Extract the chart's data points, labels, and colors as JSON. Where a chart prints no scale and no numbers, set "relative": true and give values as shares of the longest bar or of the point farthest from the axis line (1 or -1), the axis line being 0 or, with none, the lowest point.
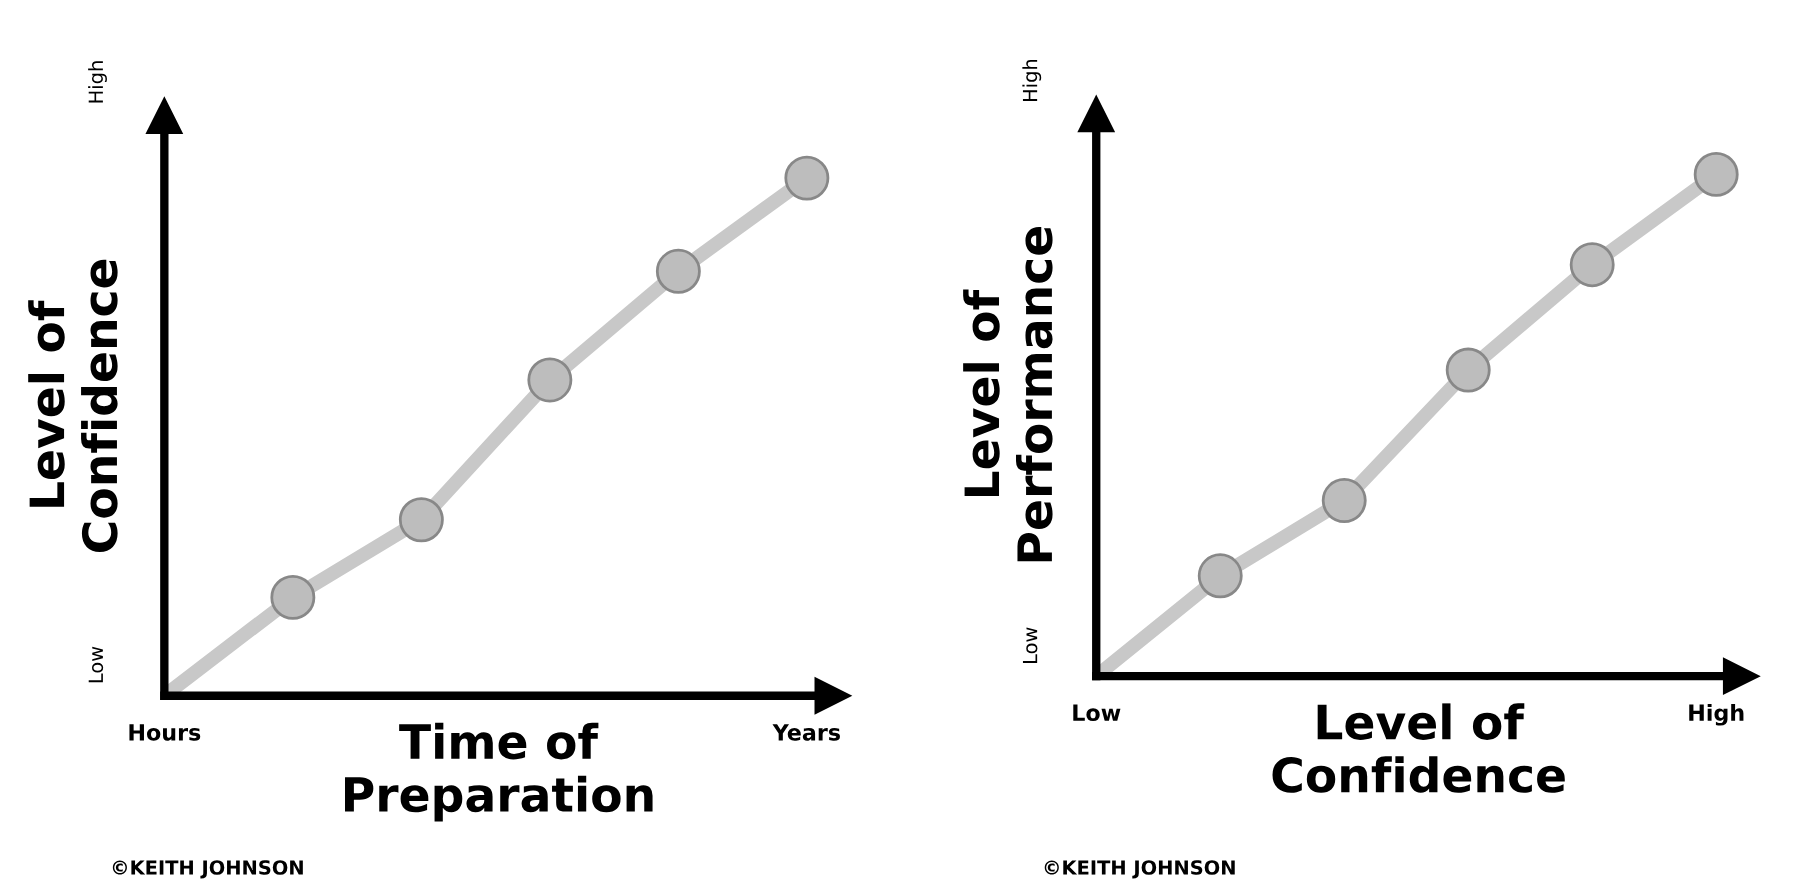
{
  "chart_data": [
    {
      "type": "line",
      "relative": true,
      "xlabel": "Time of\nPreparation",
      "ylabel": "Level of\nConfidence",
      "categories": [
        "Hours",
        null,
        null,
        null,
        null,
        "Years"
      ],
      "series": [
        {
          "type": "line",
          "color": "#c8c8c8",
          "values": [
            0,
            0.19,
            0.34,
            0.61,
            0.82,
            1
          ]
        },
        {
          "type": "scatter",
          "color": "#bdbdbd",
          "values": [
            null,
            0.19,
            0.34,
            0.61,
            0.82,
            1
          ],
          "marker": "circle"
        }
      ],
      "annotations": [
        "Low",
        "High",
        "©KEITH JOHNSON"
      ],
      "grid": false,
      "legend": false
    },
    {
      "type": "line",
      "relative": true,
      "xlabel": "Level of\nConfidence",
      "ylabel": "Level of\nPerformance",
      "categories": [
        "Low",
        null,
        null,
        null,
        null,
        "High"
      ],
      "series": [
        {
          "type": "line",
          "color": "#c8c8c8",
          "values": [
            0,
            0.2,
            0.35,
            0.61,
            0.82,
            1
          ]
        },
        {
          "type": "scatter",
          "color": "#bdbdbd",
          "values": [
            null,
            0.2,
            0.35,
            0.61,
            0.82,
            1
          ],
          "marker": "circle"
        }
      ],
      "annotations": [
        "Low",
        "High",
        "©KEITH JOHNSON"
      ],
      "grid": false,
      "legend": false
    }
  ]
}
